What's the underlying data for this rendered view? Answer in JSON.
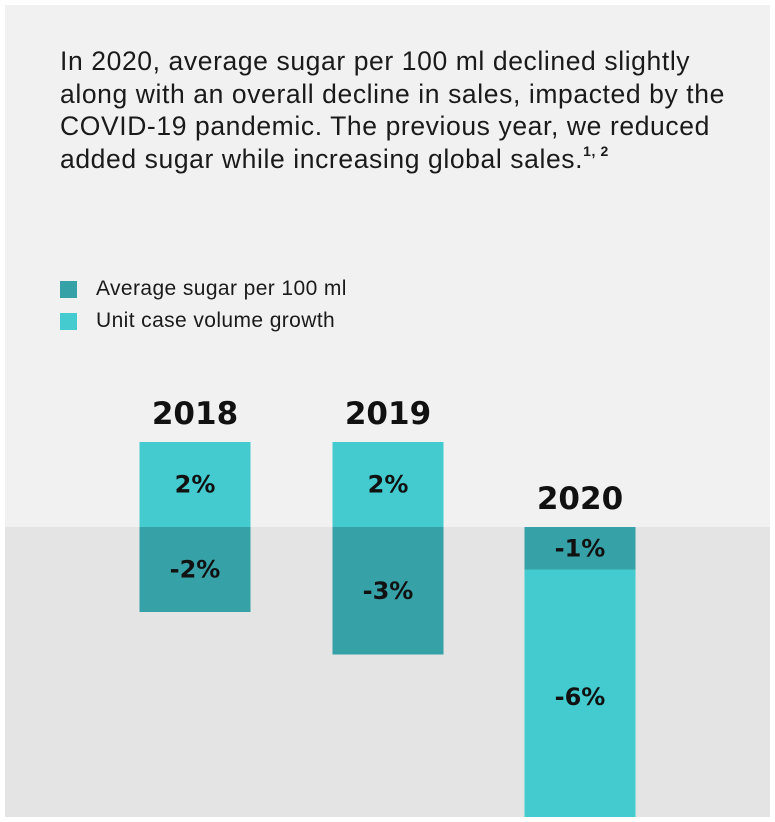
{
  "title": "In 2020, average sugar per 100 ml declined slightly along with an overall decline in sales, impacted by the COVID-19 pandemic. The previous year, we reduced added sugar while increasing global sales.",
  "title_footnote": "1, 2",
  "colors": {
    "sugar": "#36a1a6",
    "volume": "#43cbd0",
    "panel": "#f1f1f1",
    "band": "#e4e4e4"
  },
  "chart_data": {
    "type": "bar",
    "categories": [
      "2018",
      "2019",
      "2020"
    ],
    "series": [
      {
        "name": "Average sugar per 100 ml",
        "values": [
          -2,
          -3,
          -1
        ],
        "labels": [
          "-2%",
          "-3%",
          "-1%"
        ]
      },
      {
        "name": "Unit case volume growth",
        "values": [
          2,
          2,
          -6
        ],
        "labels": [
          "2%",
          "2%",
          "-6%"
        ]
      }
    ],
    "xlabel": "",
    "ylabel": "",
    "unit": "%",
    "legend_position": "top-left",
    "grid": false
  }
}
